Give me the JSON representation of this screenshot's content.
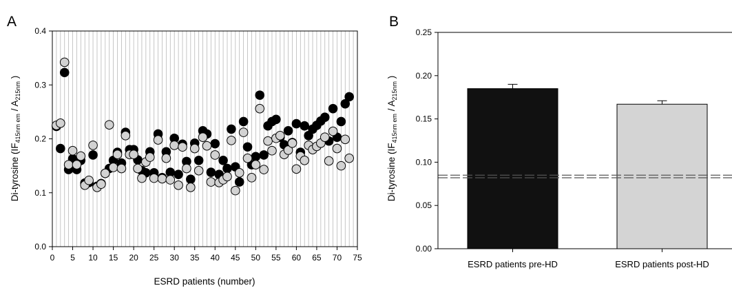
{
  "chart_data": [
    {
      "type": "scatter",
      "panel_label": "A",
      "xlabel": "ESRD patients (number)",
      "ylabel": {
        "prefix": "Di-tyrosine (IF",
        "sub1": "415nm em",
        "middle": " / A",
        "sub2": "215nm",
        "suffix": " )"
      },
      "xlim": [
        0,
        75
      ],
      "ylim": [
        0,
        0.4
      ],
      "xticks": [
        "0",
        "5",
        "10",
        "15",
        "20",
        "25",
        "30",
        "35",
        "40",
        "45",
        "50",
        "55",
        "60",
        "65",
        "70",
        "75"
      ],
      "yticks": [
        "0.0",
        "0.1",
        "0.2",
        "0.3",
        "0.4"
      ],
      "vertical_grid_step": 1,
      "colors": {
        "pre": "#000000",
        "post": "#d2d2d2",
        "grid": "#b8b8b8"
      },
      "series": [
        {
          "key": "pre",
          "color": "#000000",
          "x": [
            1,
            2,
            3,
            4,
            5,
            6,
            7,
            8,
            9,
            10,
            11,
            12,
            13,
            14,
            15,
            16,
            17,
            18,
            19,
            20,
            21,
            22,
            23,
            24,
            25,
            26,
            27,
            28,
            29,
            30,
            31,
            32,
            33,
            34,
            35,
            36,
            37,
            38,
            39,
            40,
            41,
            42,
            43,
            44,
            45,
            46,
            47,
            48,
            49,
            50,
            51,
            52,
            53,
            54,
            55,
            56,
            57,
            58,
            59,
            60,
            61,
            62,
            63,
            64,
            65,
            66,
            67,
            68,
            69,
            70,
            71,
            72,
            73
          ],
          "values": [
            0.223,
            0.182,
            0.323,
            0.143,
            0.163,
            0.143,
            0.16,
            0.118,
            0.119,
            0.17,
            0.112,
            0.117,
            0.136,
            0.145,
            0.16,
            0.175,
            0.155,
            0.212,
            0.18,
            0.18,
            0.161,
            0.141,
            0.137,
            0.176,
            0.137,
            0.209,
            0.128,
            0.176,
            0.138,
            0.201,
            0.134,
            0.19,
            0.158,
            0.125,
            0.192,
            0.16,
            0.215,
            0.209,
            0.138,
            0.191,
            0.134,
            0.16,
            0.145,
            0.218,
            0.148,
            0.12,
            0.232,
            0.185,
            0.152,
            0.167,
            0.281,
            0.17,
            0.224,
            0.232,
            0.236,
            0.203,
            0.189,
            0.215,
            0.193,
            0.228,
            0.175,
            0.224,
            0.206,
            0.218,
            0.225,
            0.233,
            0.24,
            0.196,
            0.256,
            0.203,
            0.232,
            0.265,
            0.278
          ]
        },
        {
          "key": "post",
          "color": "#d2d2d2",
          "x": [
            1,
            2,
            3,
            4,
            5,
            6,
            7,
            8,
            9,
            10,
            11,
            12,
            13,
            14,
            15,
            16,
            17,
            18,
            19,
            20,
            21,
            22,
            23,
            24,
            25,
            26,
            27,
            28,
            29,
            30,
            31,
            32,
            33,
            34,
            35,
            36,
            37,
            38,
            39,
            40,
            41,
            42,
            43,
            44,
            45,
            46,
            47,
            48,
            49,
            50,
            51,
            52,
            53,
            54,
            55,
            56,
            57,
            58,
            59,
            60,
            61,
            62,
            63,
            64,
            65,
            66,
            67,
            68,
            69,
            70,
            71,
            72,
            73
          ],
          "values": [
            0.225,
            0.229,
            0.342,
            0.152,
            0.178,
            0.152,
            0.168,
            0.114,
            0.123,
            0.188,
            0.11,
            0.116,
            0.136,
            0.226,
            0.147,
            0.171,
            0.145,
            0.206,
            0.171,
            0.171,
            0.145,
            0.127,
            0.157,
            0.166,
            0.127,
            0.198,
            0.126,
            0.164,
            0.124,
            0.188,
            0.114,
            0.185,
            0.145,
            0.11,
            0.182,
            0.141,
            0.203,
            0.187,
            0.12,
            0.17,
            0.119,
            0.124,
            0.13,
            0.197,
            0.104,
            0.137,
            0.212,
            0.164,
            0.128,
            0.152,
            0.256,
            0.143,
            0.196,
            0.178,
            0.201,
            0.206,
            0.171,
            0.179,
            0.192,
            0.144,
            0.168,
            0.16,
            0.188,
            0.18,
            0.186,
            0.192,
            0.203,
            0.159,
            0.214,
            0.182,
            0.15,
            0.199,
            0.164
          ]
        }
      ]
    },
    {
      "type": "bar",
      "panel_label": "B",
      "categories": [
        "ESRD patients pre-HD",
        "ESRD patients post-HD"
      ],
      "values": [
        0.185,
        0.167
      ],
      "errors": [
        0.005,
        0.004
      ],
      "colors": [
        "#111111",
        "#d4d4d4"
      ],
      "ylabel": {
        "prefix": "Di-tyrosine (IF",
        "sub1": "415nm em",
        "middle": " / A",
        "sub2": "215nm",
        "suffix": " )"
      },
      "ylim": [
        0,
        0.25
      ],
      "yticks": [
        "0.00",
        "0.05",
        "0.10",
        "0.15",
        "0.20",
        "0.25"
      ],
      "reference_lines": [
        0.082,
        0.085
      ],
      "reference_line_style": "dashed"
    }
  ]
}
